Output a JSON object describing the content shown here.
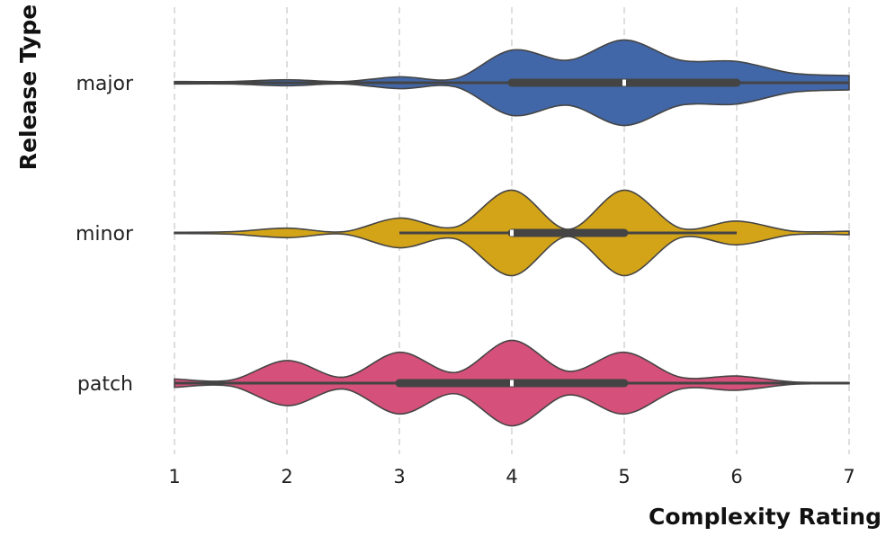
{
  "chart_data": {
    "type": "violin",
    "orientation": "horizontal",
    "xlabel": "Complexity Rating",
    "ylabel": "Release Type",
    "xlim": [
      1,
      7
    ],
    "xticks": [
      1,
      2,
      3,
      4,
      5,
      6,
      7
    ],
    "grid": "vertical dashed",
    "categories": [
      "major",
      "minor",
      "patch"
    ],
    "series": [
      {
        "name": "major",
        "color": "#4267A8",
        "density": [
          [
            1,
            0.02
          ],
          [
            1.5,
            0.02
          ],
          [
            2,
            0.05
          ],
          [
            2.5,
            0.02
          ],
          [
            3,
            0.1
          ],
          [
            3.5,
            0.07
          ],
          [
            4,
            0.55
          ],
          [
            4.5,
            0.38
          ],
          [
            5,
            0.72
          ],
          [
            5.5,
            0.38
          ],
          [
            6,
            0.36
          ],
          [
            6.5,
            0.16
          ],
          [
            7,
            0.12
          ]
        ],
        "box": {
          "min": 1,
          "q1": 4,
          "median": 5,
          "q3": 6,
          "max": 7
        }
      },
      {
        "name": "minor",
        "color": "#D4A418",
        "density": [
          [
            1,
            0.01
          ],
          [
            1.5,
            0.02
          ],
          [
            2,
            0.08
          ],
          [
            2.5,
            0.02
          ],
          [
            3,
            0.25
          ],
          [
            3.5,
            0.1
          ],
          [
            4,
            0.72
          ],
          [
            4.5,
            0.06
          ],
          [
            5,
            0.72
          ],
          [
            5.5,
            0.08
          ],
          [
            6,
            0.2
          ],
          [
            6.5,
            0.03
          ],
          [
            7,
            0.03
          ]
        ],
        "box": {
          "min": 3,
          "q1": 4,
          "median": 4,
          "q3": 5,
          "max": 6
        }
      },
      {
        "name": "patch",
        "color": "#D5507A",
        "density": [
          [
            1,
            0.07
          ],
          [
            1.5,
            0.05
          ],
          [
            2,
            0.38
          ],
          [
            2.5,
            0.1
          ],
          [
            3,
            0.52
          ],
          [
            3.5,
            0.18
          ],
          [
            4,
            0.72
          ],
          [
            4.5,
            0.2
          ],
          [
            5,
            0.52
          ],
          [
            5.5,
            0.1
          ],
          [
            6,
            0.12
          ],
          [
            6.5,
            0.02
          ],
          [
            7,
            0.01
          ]
        ],
        "box": {
          "min": 1,
          "q1": 3,
          "median": 4,
          "q3": 5,
          "max": 7
        }
      }
    ]
  }
}
